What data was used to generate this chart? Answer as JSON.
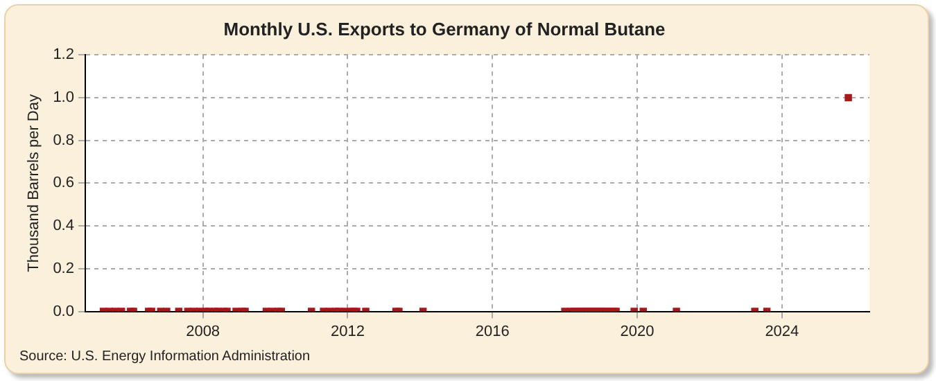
{
  "chart_data": {
    "type": "scatter",
    "title": "Monthly U.S. Exports to Germany of Normal Butane",
    "ylabel": "Thousand Barrels per Day",
    "x": [
      "2005-04",
      "2005-06",
      "2005-08",
      "2005-10",
      "2006-01",
      "2006-02",
      "2006-07",
      "2006-08",
      "2006-11",
      "2007-01",
      "2007-05",
      "2007-08",
      "2007-10",
      "2007-12",
      "2008-02",
      "2008-03",
      "2008-05",
      "2008-06",
      "2008-08",
      "2008-09",
      "2008-12",
      "2009-02",
      "2009-03",
      "2009-10",
      "2009-12",
      "2010-02",
      "2010-03",
      "2011-01",
      "2011-05",
      "2011-07",
      "2011-09",
      "2011-10",
      "2011-12",
      "2012-02",
      "2012-03",
      "2012-04",
      "2012-07",
      "2013-05",
      "2013-06",
      "2014-02",
      "2018-01",
      "2018-03",
      "2018-04",
      "2018-05",
      "2018-06",
      "2018-07",
      "2018-08",
      "2018-09",
      "2018-10",
      "2018-11",
      "2018-12",
      "2019-01",
      "2019-02",
      "2019-03",
      "2019-04",
      "2019-05",
      "2019-06",
      "2019-12",
      "2020-03",
      "2021-02",
      "2023-04",
      "2023-08",
      "2025-11"
    ],
    "series": [
      {
        "color": "#a31a1a",
        "values": [
          0,
          0,
          0,
          0,
          0,
          0,
          0,
          0,
          0,
          0,
          0,
          0,
          0,
          0,
          0,
          0,
          0,
          0,
          0,
          0,
          0,
          0,
          0,
          0,
          0,
          0,
          0,
          0,
          0,
          0,
          0,
          0,
          0,
          0,
          0,
          0,
          0,
          0,
          0,
          0,
          0,
          0,
          0,
          0,
          0,
          0,
          0,
          0,
          0,
          0,
          0,
          0,
          0,
          0,
          0,
          0,
          0,
          0,
          0,
          0,
          0,
          0,
          1.0
        ]
      }
    ],
    "xlim": [
      "2004-10",
      "2026-06"
    ],
    "xticks": [
      {
        "value": "2008",
        "label": "2008"
      },
      {
        "value": "2012",
        "label": "2012"
      },
      {
        "value": "2016",
        "label": "2016"
      },
      {
        "value": "2020",
        "label": "2020"
      },
      {
        "value": "2024",
        "label": "2024"
      }
    ],
    "ylim": [
      0,
      1.2
    ],
    "yticks": [
      {
        "value": 0,
        "label": "0.0"
      },
      {
        "value": 0.2,
        "label": "0.2"
      },
      {
        "value": 0.4,
        "label": "0.4"
      },
      {
        "value": 0.6,
        "label": "0.6"
      },
      {
        "value": 0.8,
        "label": "0.8"
      },
      {
        "value": 1.0,
        "label": "1.0"
      },
      {
        "value": 1.2,
        "label": "1.2"
      }
    ],
    "grid": true,
    "marker": "square",
    "legend": false,
    "annotations": [
      "Source: U.S. Energy Information Administration"
    ]
  }
}
